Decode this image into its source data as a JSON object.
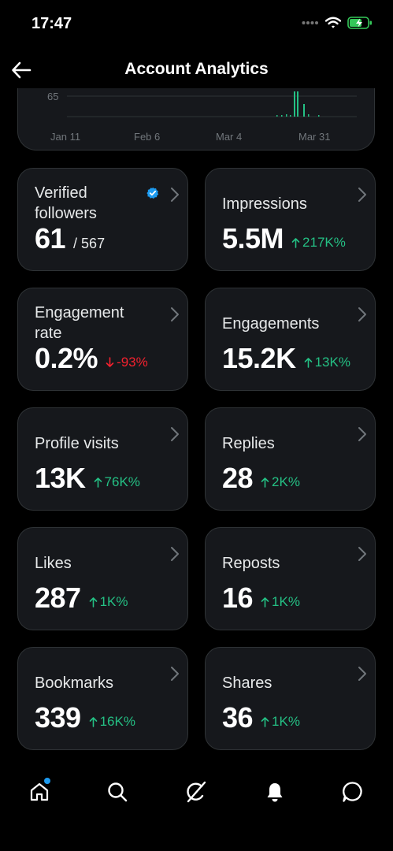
{
  "status_bar": {
    "time": "17:47"
  },
  "header": {
    "title": "Account Analytics"
  },
  "chart_data": {
    "type": "bar",
    "y_tick_labels": [
      "65"
    ],
    "x_tick_labels": [
      "Jan 11",
      "Feb 6",
      "Mar 4",
      "Mar 31"
    ],
    "grid": true
  },
  "metrics": [
    {
      "label": "Verified followers",
      "value": "61",
      "sub_value": "/ 567",
      "verified_badge": true
    },
    {
      "label": "Impressions",
      "value": "5.5M",
      "delta": "217K%",
      "direction": "up"
    },
    {
      "label": "Engagement rate",
      "value": "0.2%",
      "delta": "-93%",
      "direction": "down"
    },
    {
      "label": "Engagements",
      "value": "15.2K",
      "delta": "13K%",
      "direction": "up"
    },
    {
      "label": "Profile visits",
      "value": "13K",
      "delta": "76K%",
      "direction": "up"
    },
    {
      "label": "Replies",
      "value": "28",
      "delta": "2K%",
      "direction": "up"
    },
    {
      "label": "Likes",
      "value": "287",
      "delta": "1K%",
      "direction": "up"
    },
    {
      "label": "Reposts",
      "value": "16",
      "delta": "1K%",
      "direction": "up"
    },
    {
      "label": "Bookmarks",
      "value": "339",
      "delta": "16K%",
      "direction": "up"
    },
    {
      "label": "Shares",
      "value": "36",
      "delta": "1K%",
      "direction": "up"
    }
  ],
  "colors": {
    "up": "#24c084",
    "down": "#f4212e",
    "accent": "#1d9bf0",
    "card_bg": "#16181c",
    "border": "#2f3336"
  },
  "tabs": [
    {
      "icon": "home-icon",
      "notification_dot": true
    },
    {
      "icon": "search-icon"
    },
    {
      "icon": "grok-icon"
    },
    {
      "icon": "bell-icon"
    },
    {
      "icon": "messages-icon"
    }
  ]
}
